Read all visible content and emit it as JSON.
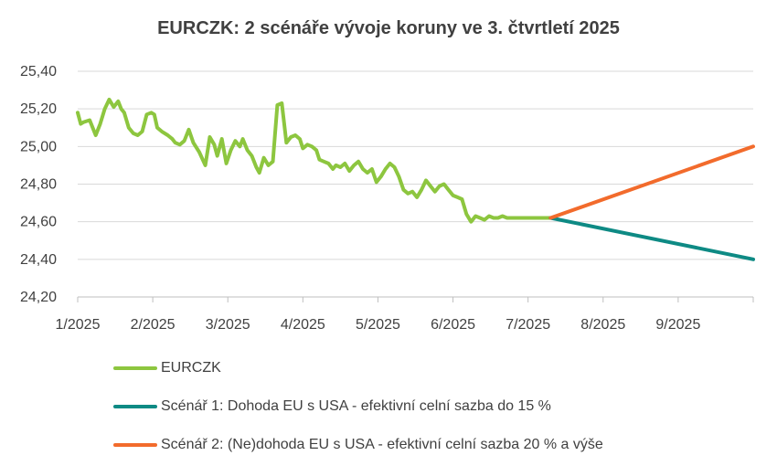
{
  "chart_data": {
    "type": "line",
    "title": "EURCZK: 2 scénáře vývoje koruny ve 3. čtvrtletí 2025",
    "xlabel": "",
    "ylabel": "",
    "ylim": [
      24.2,
      25.4
    ],
    "yticks": [
      "25,40",
      "25,20",
      "25,00",
      "24,80",
      "24,60",
      "24,40",
      "24,20"
    ],
    "ytick_values": [
      25.4,
      25.2,
      25.0,
      24.8,
      24.6,
      24.4,
      24.2
    ],
    "xlim": [
      0,
      9.0
    ],
    "xticks": [
      "1/2025",
      "2/2025",
      "3/2025",
      "4/2025",
      "5/2025",
      "6/2025",
      "7/2025",
      "8/2025",
      "9/2025"
    ],
    "xtick_values": [
      0,
      1,
      2,
      3,
      4,
      5,
      6,
      7,
      8
    ],
    "grid": "horizontal",
    "legend": "bottom",
    "series": [
      {
        "name": "EURCZK",
        "color": "#8dc63f",
        "x": [
          0,
          0.04,
          0.08,
          0.16,
          0.24,
          0.3,
          0.36,
          0.42,
          0.48,
          0.54,
          0.58,
          0.62,
          0.68,
          0.74,
          0.8,
          0.86,
          0.92,
          0.98,
          1.02,
          1.06,
          1.12,
          1.2,
          1.26,
          1.3,
          1.36,
          1.42,
          1.48,
          1.54,
          1.62,
          1.7,
          1.76,
          1.82,
          1.86,
          1.92,
          1.98,
          2.04,
          2.1,
          2.16,
          2.2,
          2.26,
          2.32,
          2.38,
          2.42,
          2.48,
          2.54,
          2.6,
          2.66,
          2.72,
          2.78,
          2.84,
          2.9,
          2.96,
          3.0,
          3.06,
          3.12,
          3.18,
          3.22,
          3.28,
          3.34,
          3.4,
          3.44,
          3.5,
          3.56,
          3.62,
          3.68,
          3.74,
          3.8,
          3.86,
          3.92,
          3.98,
          4.04,
          4.1,
          4.16,
          4.22,
          4.28,
          4.34,
          4.4,
          4.46,
          4.52,
          4.58,
          4.64,
          4.7,
          4.76,
          4.82,
          4.88,
          4.94,
          5.0,
          5.06,
          5.12,
          5.18,
          5.24,
          5.3,
          5.36,
          5.42,
          5.48,
          5.54,
          5.6,
          5.66,
          5.72,
          5.78,
          5.84,
          5.9,
          5.96,
          6.02,
          6.08,
          6.14,
          6.2,
          6.26,
          6.32
        ],
        "values": [
          25.18,
          25.12,
          25.13,
          25.14,
          25.06,
          25.12,
          25.2,
          25.25,
          25.21,
          25.24,
          25.2,
          25.18,
          25.1,
          25.07,
          25.06,
          25.08,
          25.17,
          25.18,
          25.17,
          25.1,
          25.08,
          25.06,
          25.04,
          25.02,
          25.01,
          25.03,
          25.09,
          25.02,
          24.97,
          24.9,
          25.05,
          25.01,
          24.95,
          25.04,
          24.91,
          24.98,
          25.03,
          25.0,
          25.04,
          24.98,
          24.95,
          24.89,
          24.86,
          24.94,
          24.9,
          24.92,
          25.22,
          25.23,
          25.02,
          25.05,
          25.06,
          25.04,
          24.99,
          25.01,
          25.0,
          24.98,
          24.93,
          24.92,
          24.91,
          24.88,
          24.9,
          24.89,
          24.91,
          24.87,
          24.9,
          24.92,
          24.88,
          24.86,
          24.88,
          24.81,
          24.84,
          24.88,
          24.91,
          24.89,
          24.84,
          24.77,
          24.75,
          24.76,
          24.73,
          24.77,
          24.82,
          24.79,
          24.76,
          24.79,
          24.8,
          24.77,
          24.74,
          24.73,
          24.72,
          24.64,
          24.6,
          24.63,
          24.62,
          24.61,
          24.63,
          24.62,
          24.62,
          24.63,
          24.62,
          24.62,
          24.62,
          24.62,
          24.62,
          24.62,
          24.62,
          24.62,
          24.62,
          24.62,
          24.62
        ]
      },
      {
        "name": "Scénář 1: Dohoda EU s USA - efektivní celní sazba do 15 %",
        "color": "#0e8a84",
        "x": [
          6.3,
          9.0
        ],
        "values": [
          24.62,
          24.4
        ]
      },
      {
        "name": "Scénář 2: (Ne)dohoda EU s USA - efektivní celní sazba 20 % a výše",
        "color": "#f26b2c",
        "x": [
          6.3,
          9.0
        ],
        "values": [
          24.62,
          25.0
        ]
      }
    ]
  }
}
